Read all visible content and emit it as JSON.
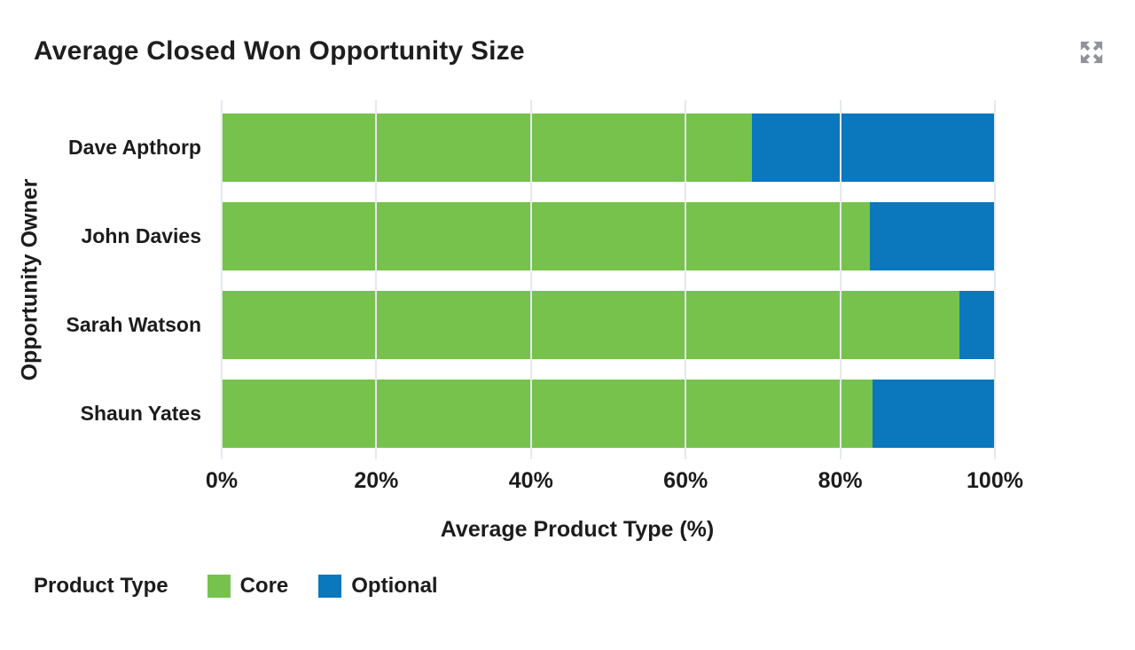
{
  "header": {
    "title": "Average Closed Won Opportunity Size"
  },
  "icons": {
    "expand": "expand-arrows-icon"
  },
  "colors": {
    "core": "#77C24C",
    "optional": "#0B77BD",
    "gridline": "#E3EAEF",
    "text": "#1C1C1C",
    "icon": "#8E949C",
    "background": "#FFFFFF"
  },
  "chart_data": {
    "type": "bar",
    "orientation": "horizontal",
    "stacked": true,
    "title": "Average Closed Won Opportunity Size",
    "categories": [
      "Dave Apthorp",
      "John Davies",
      "Sarah Watson",
      "Shaun Yates"
    ],
    "series": [
      {
        "name": "Core",
        "color": "#77C24C",
        "values": [
          68.6,
          83.8,
          95.4,
          84.2
        ]
      },
      {
        "name": "Optional",
        "color": "#0B77BD",
        "values": [
          31.4,
          16.2,
          4.6,
          15.8
        ]
      }
    ],
    "xlabel": "Average Product Type (%)",
    "ylabel": "Opportunity Owner",
    "xlim": [
      0,
      100
    ],
    "xticks": [
      "0%",
      "20%",
      "40%",
      "60%",
      "80%",
      "100%"
    ],
    "grid": true,
    "legend_title": "Product Type",
    "legend_position": "bottom-left"
  },
  "legend": {
    "title": "Product Type",
    "items": [
      {
        "label": "Core"
      },
      {
        "label": "Optional"
      }
    ]
  }
}
